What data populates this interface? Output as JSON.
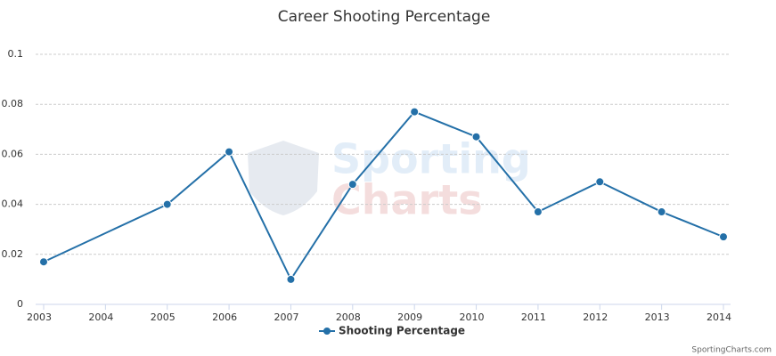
{
  "chart_data": {
    "type": "line",
    "title": "Career Shooting Percentage",
    "watermark": [
      "Sporting",
      "Charts"
    ],
    "credits": "SportingCharts.com",
    "x": [
      2003,
      2005,
      2006,
      2007,
      2008,
      2009,
      2010,
      2011,
      2012,
      2013,
      2014
    ],
    "series": [
      {
        "name": "Shooting Percentage",
        "color": "#2470a8",
        "values": [
          0.017,
          0.04,
          0.061,
          0.01,
          0.048,
          0.077,
          0.067,
          0.037,
          0.049,
          0.037,
          0.027
        ]
      }
    ],
    "xlim": [
      2003,
      2014
    ],
    "xticks": [
      2003,
      2004,
      2005,
      2006,
      2007,
      2008,
      2009,
      2010,
      2011,
      2012,
      2013,
      2014
    ],
    "ylim": [
      0,
      0.1
    ],
    "yticks": [
      0,
      0.02,
      0.04,
      0.06,
      0.08,
      0.1
    ],
    "grid": true,
    "legend": "bottom"
  }
}
